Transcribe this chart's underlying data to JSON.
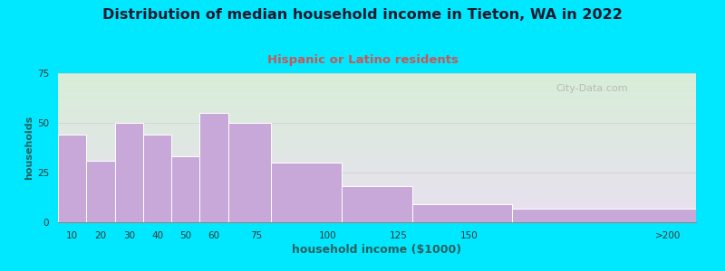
{
  "title": "Distribution of median household income in Tieton, WA in 2022",
  "subtitle": "Hispanic or Latino residents",
  "xlabel": "household income ($1000)",
  "ylabel": "households",
  "values": [
    44,
    31,
    50,
    44,
    33,
    55,
    50,
    30,
    18,
    9,
    7
  ],
  "bar_color": "#c8a8d8",
  "bar_edge_color": "#ffffff",
  "title_fontsize": 11.5,
  "subtitle_fontsize": 9.5,
  "subtitle_color": "#cc5555",
  "title_color": "#1a1a2e",
  "ylabel_color": "#2a6060",
  "xlabel_color": "#2a6060",
  "background_outer": "#00e8ff",
  "background_plot_topleft": "#d8eed8",
  "background_plot_bottomright": "#e8e0f0",
  "ylim": [
    0,
    75
  ],
  "yticks": [
    0,
    25,
    50,
    75
  ],
  "watermark": "City-Data.com",
  "bar_lefts": [
    5,
    15,
    25,
    35,
    45,
    55,
    65,
    80,
    105,
    130,
    165
  ],
  "bar_rights": [
    15,
    25,
    35,
    45,
    55,
    65,
    80,
    105,
    130,
    165,
    230
  ],
  "xtick_positions": [
    10,
    20,
    30,
    40,
    50,
    60,
    75,
    100,
    125,
    150,
    220
  ],
  "xtick_labels": [
    "10",
    "20",
    "30",
    "40",
    "50",
    "60",
    "75",
    "100",
    "125",
    "150",
    ">200"
  ]
}
